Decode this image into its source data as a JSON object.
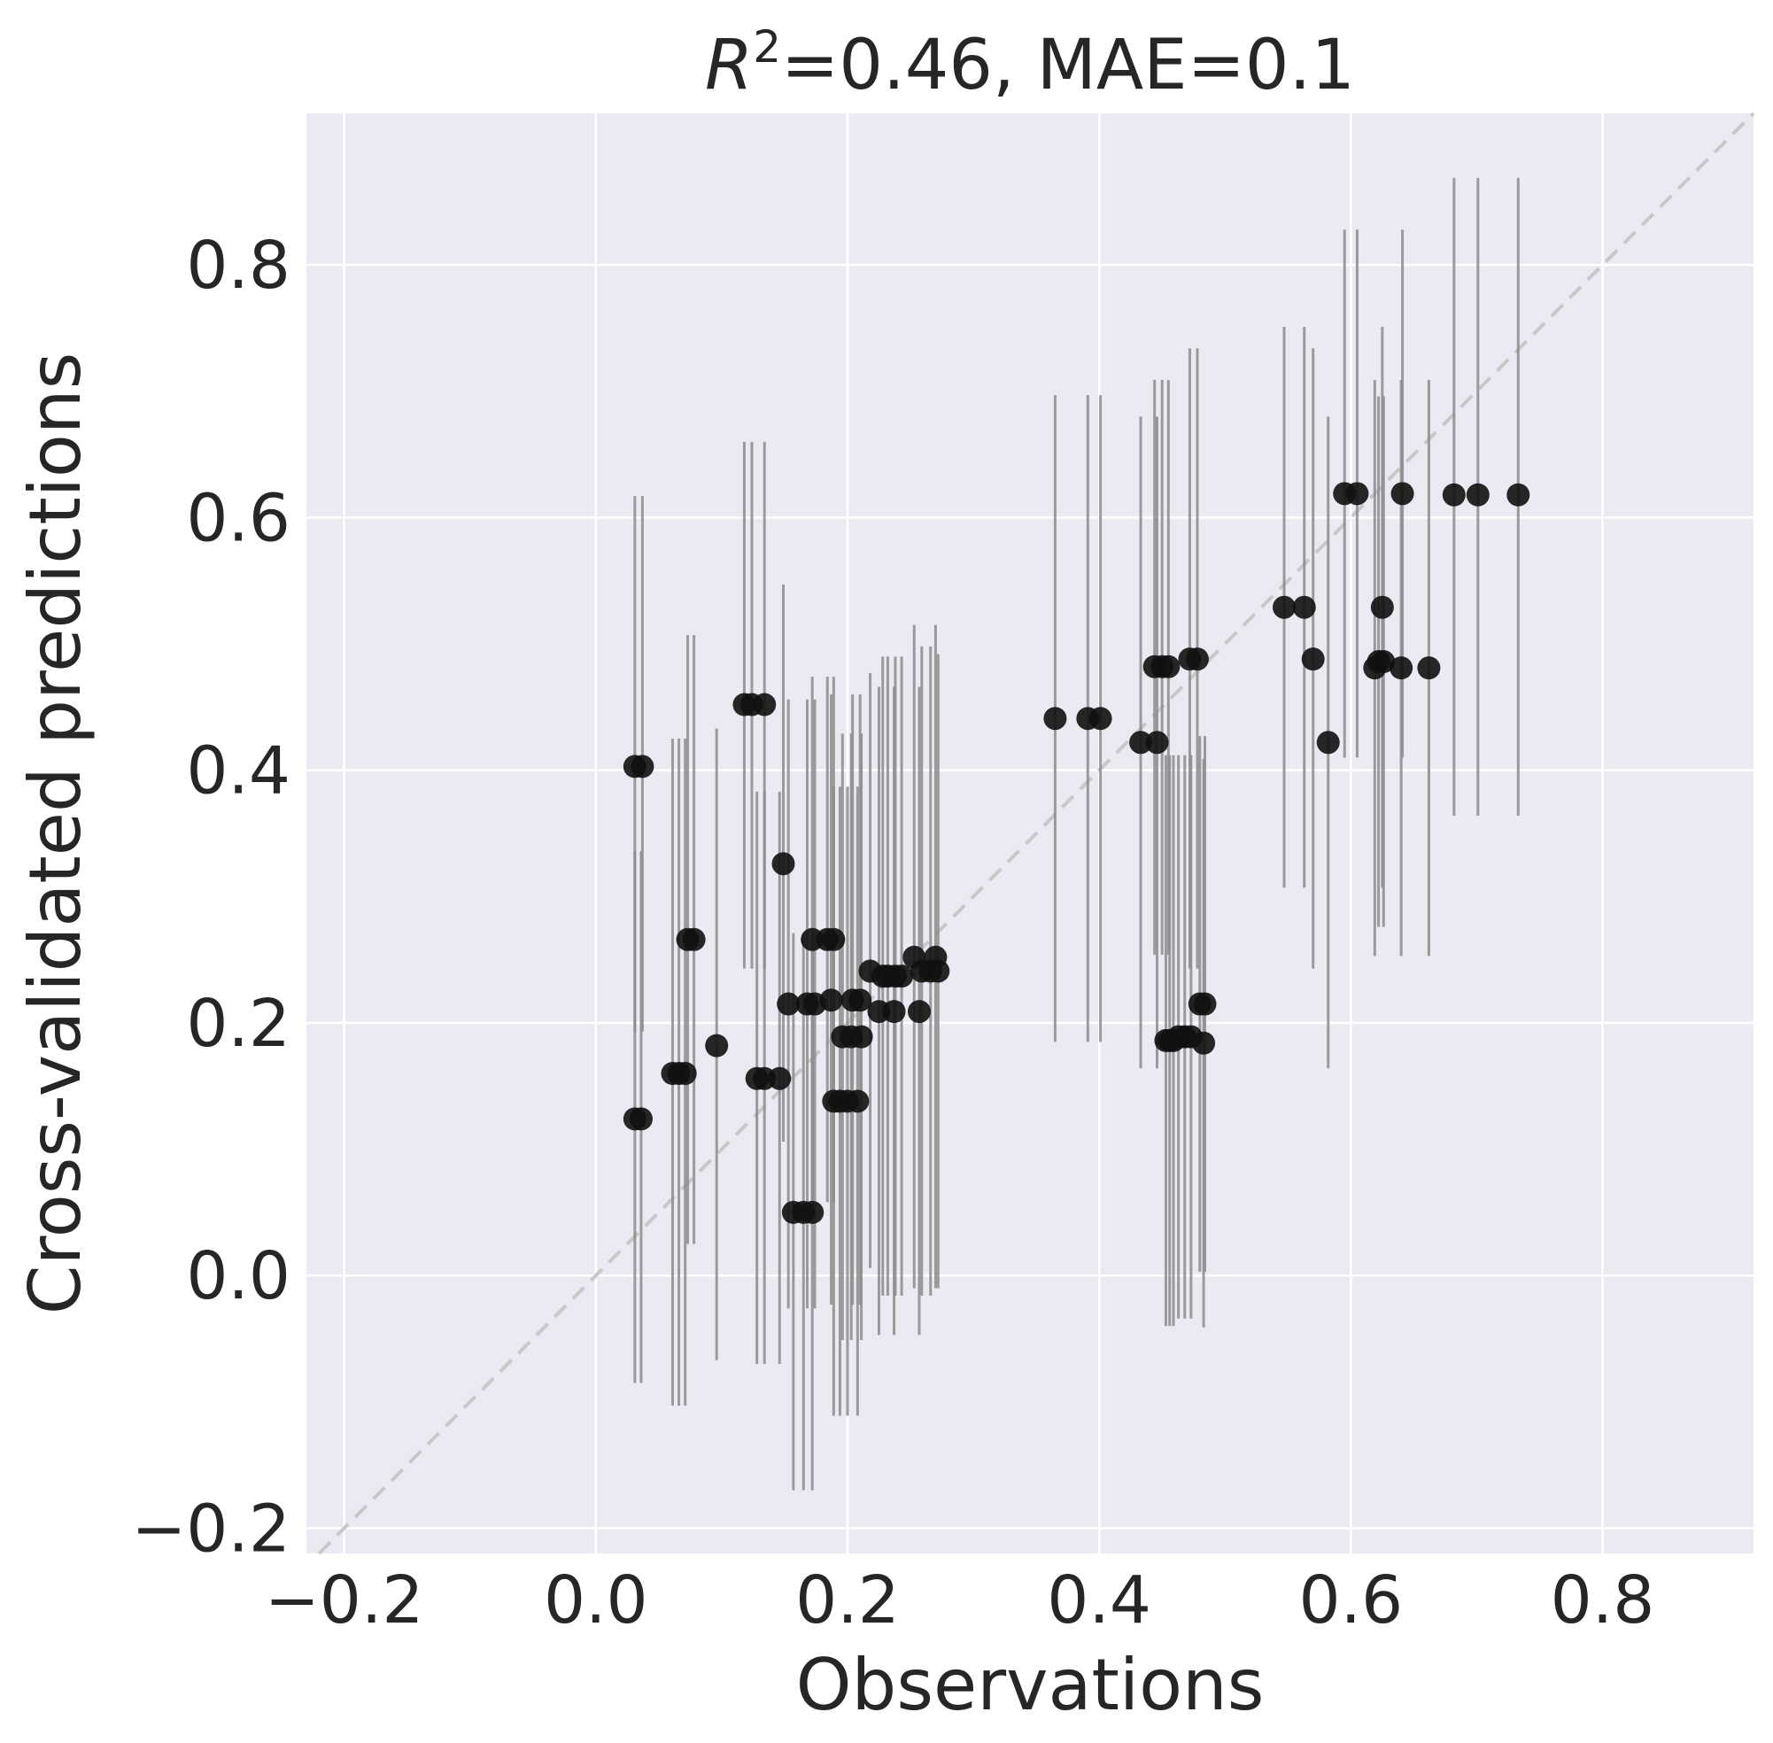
{
  "chart_data": {
    "type": "scatter",
    "title": {
      "r_symbol": "R",
      "r_exponent": "2",
      "rest": "=0.46, MAE=0.1"
    },
    "xlabel": "Observations",
    "ylabel": "Cross-validated predictions",
    "xlim": [
      -0.23,
      0.92
    ],
    "ylim": [
      -0.22,
      0.92
    ],
    "xticks": [
      -0.2,
      0.0,
      0.2,
      0.4,
      0.6,
      0.8
    ],
    "yticks": [
      -0.2,
      0.0,
      0.2,
      0.4,
      0.6,
      0.8
    ],
    "xtick_labels": [
      "−0.2",
      "0.0",
      "0.2",
      "0.4",
      "0.6",
      "0.8"
    ],
    "ytick_labels": [
      "−0.2",
      "0.0",
      "0.2",
      "0.4",
      "0.6",
      "0.8"
    ],
    "grid": true,
    "identity_line": true,
    "colors": {
      "background": "#eaeaf2",
      "grid": "#ffffff",
      "point": "#111111",
      "errorbar": "#8c8c8c",
      "identity_line": "#c8c8c8"
    },
    "points": [
      {
        "x": 0.031,
        "y": 0.403,
        "lo": 0.193,
        "hi": 0.617
      },
      {
        "x": 0.037,
        "y": 0.403,
        "lo": 0.193,
        "hi": 0.617
      },
      {
        "x": 0.031,
        "y": 0.124,
        "lo": -0.085,
        "hi": 0.336
      },
      {
        "x": 0.036,
        "y": 0.124,
        "lo": -0.085,
        "hi": 0.336
      },
      {
        "x": 0.061,
        "y": 0.16,
        "lo": -0.103,
        "hi": 0.425
      },
      {
        "x": 0.066,
        "y": 0.16,
        "lo": -0.103,
        "hi": 0.425
      },
      {
        "x": 0.071,
        "y": 0.16,
        "lo": -0.103,
        "hi": 0.425
      },
      {
        "x": 0.073,
        "y": 0.266,
        "lo": 0.025,
        "hi": 0.507
      },
      {
        "x": 0.078,
        "y": 0.266,
        "lo": 0.025,
        "hi": 0.507
      },
      {
        "x": 0.096,
        "y": 0.182,
        "lo": -0.067,
        "hi": 0.433
      },
      {
        "x": 0.118,
        "y": 0.452,
        "lo": 0.243,
        "hi": 0.66
      },
      {
        "x": 0.124,
        "y": 0.452,
        "lo": 0.243,
        "hi": 0.66
      },
      {
        "x": 0.134,
        "y": 0.452,
        "lo": 0.243,
        "hi": 0.66
      },
      {
        "x": 0.128,
        "y": 0.156,
        "lo": -0.07,
        "hi": 0.383
      },
      {
        "x": 0.134,
        "y": 0.156,
        "lo": -0.07,
        "hi": 0.383
      },
      {
        "x": 0.146,
        "y": 0.156,
        "lo": -0.07,
        "hi": 0.383
      },
      {
        "x": 0.149,
        "y": 0.326,
        "lo": 0.106,
        "hi": 0.547
      },
      {
        "x": 0.153,
        "y": 0.215,
        "lo": -0.026,
        "hi": 0.456
      },
      {
        "x": 0.168,
        "y": 0.215,
        "lo": -0.026,
        "hi": 0.456
      },
      {
        "x": 0.174,
        "y": 0.215,
        "lo": -0.026,
        "hi": 0.456
      },
      {
        "x": 0.157,
        "y": 0.05,
        "lo": -0.17,
        "hi": 0.271
      },
      {
        "x": 0.165,
        "y": 0.05,
        "lo": -0.17,
        "hi": 0.271
      },
      {
        "x": 0.172,
        "y": 0.05,
        "lo": -0.17,
        "hi": 0.271
      },
      {
        "x": 0.172,
        "y": 0.266,
        "lo": 0.058,
        "hi": 0.474
      },
      {
        "x": 0.184,
        "y": 0.266,
        "lo": 0.058,
        "hi": 0.474
      },
      {
        "x": 0.189,
        "y": 0.266,
        "lo": 0.058,
        "hi": 0.474
      },
      {
        "x": 0.187,
        "y": 0.218,
        "lo": -0.023,
        "hi": 0.46
      },
      {
        "x": 0.189,
        "y": 0.138,
        "lo": -0.111,
        "hi": 0.387
      },
      {
        "x": 0.194,
        "y": 0.138,
        "lo": -0.111,
        "hi": 0.387
      },
      {
        "x": 0.2,
        "y": 0.138,
        "lo": -0.111,
        "hi": 0.387
      },
      {
        "x": 0.208,
        "y": 0.138,
        "lo": -0.111,
        "hi": 0.387
      },
      {
        "x": 0.196,
        "y": 0.189,
        "lo": -0.051,
        "hi": 0.429
      },
      {
        "x": 0.203,
        "y": 0.189,
        "lo": -0.051,
        "hi": 0.429
      },
      {
        "x": 0.211,
        "y": 0.189,
        "lo": -0.051,
        "hi": 0.429
      },
      {
        "x": 0.204,
        "y": 0.218,
        "lo": -0.023,
        "hi": 0.46
      },
      {
        "x": 0.21,
        "y": 0.218,
        "lo": -0.023,
        "hi": 0.46
      },
      {
        "x": 0.218,
        "y": 0.241,
        "lo": 0.006,
        "hi": 0.477
      },
      {
        "x": 0.225,
        "y": 0.209,
        "lo": -0.047,
        "hi": 0.466
      },
      {
        "x": 0.237,
        "y": 0.209,
        "lo": -0.047,
        "hi": 0.466
      },
      {
        "x": 0.257,
        "y": 0.209,
        "lo": -0.047,
        "hi": 0.466
      },
      {
        "x": 0.228,
        "y": 0.237,
        "lo": -0.016,
        "hi": 0.49
      },
      {
        "x": 0.232,
        "y": 0.237,
        "lo": -0.016,
        "hi": 0.49
      },
      {
        "x": 0.238,
        "y": 0.237,
        "lo": -0.016,
        "hi": 0.49
      },
      {
        "x": 0.243,
        "y": 0.237,
        "lo": -0.016,
        "hi": 0.49
      },
      {
        "x": 0.253,
        "y": 0.252,
        "lo": -0.01,
        "hi": 0.515
      },
      {
        "x": 0.259,
        "y": 0.241,
        "lo": -0.016,
        "hi": 0.498
      },
      {
        "x": 0.266,
        "y": 0.241,
        "lo": -0.016,
        "hi": 0.498
      },
      {
        "x": 0.272,
        "y": 0.241,
        "lo": -0.01,
        "hi": 0.492
      },
      {
        "x": 0.27,
        "y": 0.252,
        "lo": -0.01,
        "hi": 0.515
      },
      {
        "x": 0.365,
        "y": 0.441,
        "lo": 0.185,
        "hi": 0.697
      },
      {
        "x": 0.391,
        "y": 0.441,
        "lo": 0.185,
        "hi": 0.697
      },
      {
        "x": 0.401,
        "y": 0.441,
        "lo": 0.185,
        "hi": 0.697
      },
      {
        "x": 0.433,
        "y": 0.422,
        "lo": 0.164,
        "hi": 0.68
      },
      {
        "x": 0.446,
        "y": 0.422,
        "lo": 0.164,
        "hi": 0.68
      },
      {
        "x": 0.444,
        "y": 0.482,
        "lo": 0.254,
        "hi": 0.709
      },
      {
        "x": 0.45,
        "y": 0.482,
        "lo": 0.254,
        "hi": 0.709
      },
      {
        "x": 0.455,
        "y": 0.482,
        "lo": 0.254,
        "hi": 0.709
      },
      {
        "x": 0.453,
        "y": 0.186,
        "lo": -0.04,
        "hi": 0.412
      },
      {
        "x": 0.456,
        "y": 0.186,
        "lo": -0.04,
        "hi": 0.412
      },
      {
        "x": 0.459,
        "y": 0.186,
        "lo": -0.04,
        "hi": 0.412
      },
      {
        "x": 0.463,
        "y": 0.189,
        "lo": -0.034,
        "hi": 0.412
      },
      {
        "x": 0.468,
        "y": 0.189,
        "lo": -0.034,
        "hi": 0.412
      },
      {
        "x": 0.473,
        "y": 0.189,
        "lo": -0.034,
        "hi": 0.412
      },
      {
        "x": 0.472,
        "y": 0.488,
        "lo": 0.243,
        "hi": 0.734
      },
      {
        "x": 0.478,
        "y": 0.488,
        "lo": 0.243,
        "hi": 0.734
      },
      {
        "x": 0.48,
        "y": 0.215,
        "lo": 0.003,
        "hi": 0.427
      },
      {
        "x": 0.484,
        "y": 0.215,
        "lo": 0.003,
        "hi": 0.427
      },
      {
        "x": 0.483,
        "y": 0.184,
        "lo": -0.041,
        "hi": 0.409
      },
      {
        "x": 0.547,
        "y": 0.529,
        "lo": 0.307,
        "hi": 0.751
      },
      {
        "x": 0.563,
        "y": 0.529,
        "lo": 0.307,
        "hi": 0.751
      },
      {
        "x": 0.57,
        "y": 0.488,
        "lo": 0.243,
        "hi": 0.734
      },
      {
        "x": 0.582,
        "y": 0.422,
        "lo": 0.164,
        "hi": 0.68
      },
      {
        "x": 0.595,
        "y": 0.619,
        "lo": 0.41,
        "hi": 0.828
      },
      {
        "x": 0.605,
        "y": 0.619,
        "lo": 0.41,
        "hi": 0.828
      },
      {
        "x": 0.619,
        "y": 0.481,
        "lo": 0.253,
        "hi": 0.709
      },
      {
        "x": 0.622,
        "y": 0.486,
        "lo": 0.276,
        "hi": 0.696
      },
      {
        "x": 0.626,
        "y": 0.486,
        "lo": 0.276,
        "hi": 0.696
      },
      {
        "x": 0.625,
        "y": 0.529,
        "lo": 0.307,
        "hi": 0.751
      },
      {
        "x": 0.641,
        "y": 0.619,
        "lo": 0.41,
        "hi": 0.828
      },
      {
        "x": 0.64,
        "y": 0.481,
        "lo": 0.253,
        "hi": 0.709
      },
      {
        "x": 0.662,
        "y": 0.481,
        "lo": 0.253,
        "hi": 0.709
      },
      {
        "x": 0.682,
        "y": 0.618,
        "lo": 0.364,
        "hi": 0.869
      },
      {
        "x": 0.701,
        "y": 0.618,
        "lo": 0.364,
        "hi": 0.869
      },
      {
        "x": 0.733,
        "y": 0.618,
        "lo": 0.364,
        "hi": 0.869
      }
    ]
  }
}
